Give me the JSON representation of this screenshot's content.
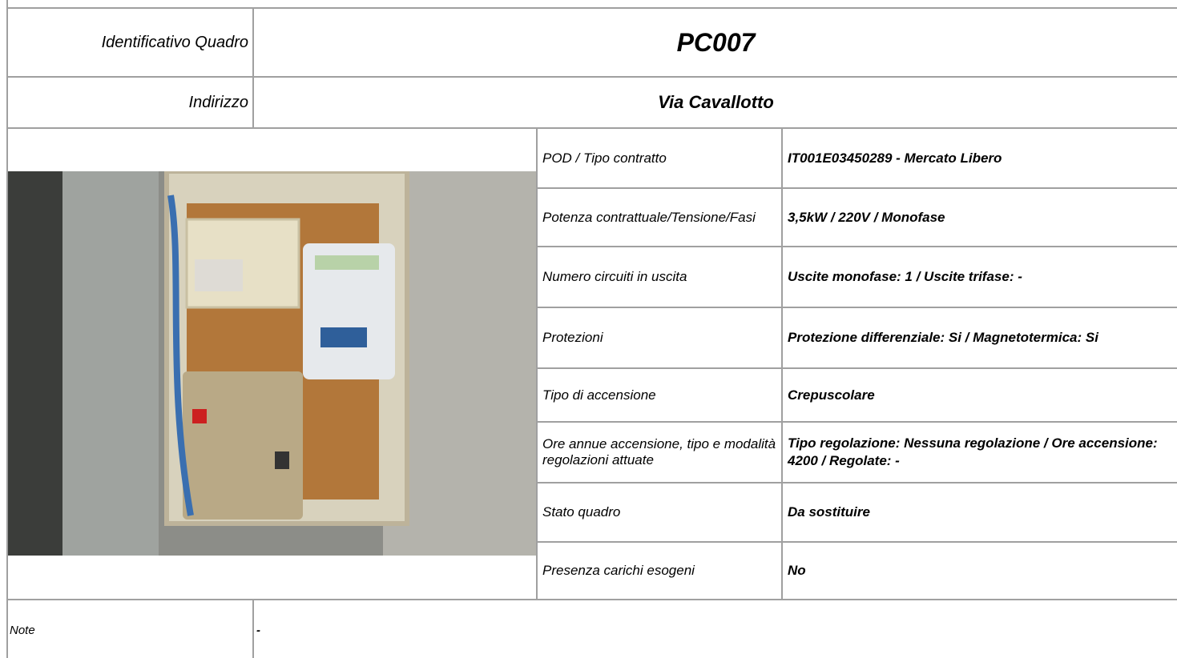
{
  "header": {
    "id_label": "Identificativo Quadro",
    "id_value": "PC007",
    "address_label": "Indirizzo",
    "address_value": "Via Cavallotto"
  },
  "details": [
    {
      "label": "POD / Tipo contratto",
      "value": "IT001E03450289 - Mercato Libero"
    },
    {
      "label": "Potenza contrattuale/Tensione/Fasi",
      "value": "3,5kW / 220V / Monofase"
    },
    {
      "label": "Numero circuiti in uscita",
      "value": "Uscite monofase: 1 / Uscite trifase: -"
    },
    {
      "label": "Protezioni",
      "value": "Protezione differenziale: Si / Magnetotermica: Si"
    },
    {
      "label": "Tipo di accensione",
      "value": "Crepuscolare"
    },
    {
      "label": "Ore annue accensione, tipo e modalità regolazioni attuate",
      "value": "Tipo regolazione: Nessuna regolazione / Ore accensione: 4200 / Regolate: -"
    },
    {
      "label": "Stato quadro",
      "value": "Da sostituire"
    },
    {
      "label": "Presenza carichi esogeni",
      "value": "No"
    }
  ],
  "note": {
    "label": "Note",
    "value": "-"
  }
}
